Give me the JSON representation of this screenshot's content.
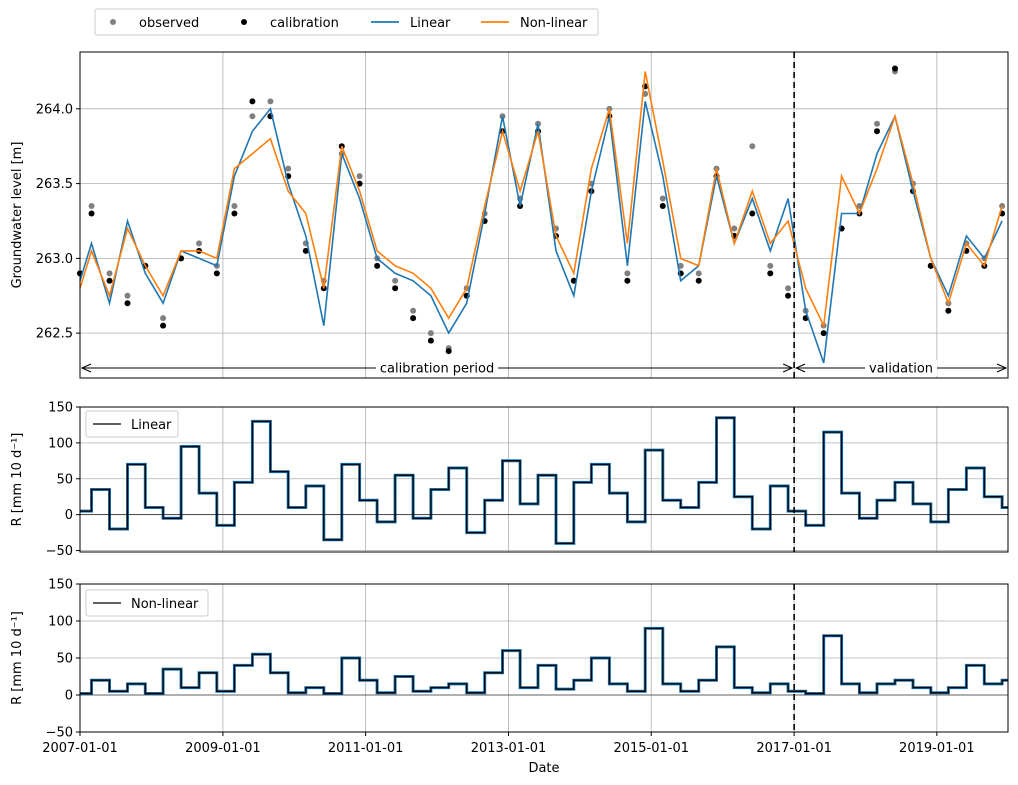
{
  "colors": {
    "observed": "#808080",
    "calibration": "#000000",
    "linear": "#1f77b4",
    "nonlinear": "#ff7f0e",
    "grid": "#b0b0b0"
  },
  "legend_top": [
    {
      "label": "observed",
      "kind": "marker",
      "color": "#808080"
    },
    {
      "label": "calibration",
      "kind": "marker",
      "color": "#000000"
    },
    {
      "label": "Linear",
      "kind": "line",
      "color": "#1f77b4"
    },
    {
      "label": "Non-linear",
      "kind": "line",
      "color": "#ff7f0e"
    }
  ],
  "chart_data": [
    {
      "type": "line",
      "id": "head",
      "ylabel": "Groundwater level [m]",
      "xlim": [
        "2007-01-01",
        "2019-12-31"
      ],
      "ylim": [
        262.2,
        264.38
      ],
      "yticks": [
        262.5,
        263.0,
        263.5,
        264.0
      ],
      "ytick_labels": [
        "262.5",
        "263.0",
        "263.5",
        "264.0"
      ],
      "grid": true,
      "split_date": "2017-01-01",
      "annotations": [
        {
          "text": "calibration period",
          "from": "2007-01-01",
          "to": "2017-01-01"
        },
        {
          "text": "validation",
          "from": "2017-01-01",
          "to": "2019-12-31"
        }
      ],
      "series": [
        {
          "name": "observed",
          "style": "points",
          "x": [
            "2007-01-01",
            "2007-03-01",
            "2007-06-01",
            "2007-09-01",
            "2007-12-01",
            "2008-03-01",
            "2008-06-01",
            "2008-09-01",
            "2008-12-01",
            "2009-03-01",
            "2009-06-01",
            "2009-09-01",
            "2009-12-01",
            "2010-03-01",
            "2010-06-01",
            "2010-09-01",
            "2010-12-01",
            "2011-03-01",
            "2011-06-01",
            "2011-09-01",
            "2011-12-01",
            "2012-03-01",
            "2012-06-01",
            "2012-09-01",
            "2012-12-01",
            "2013-03-01",
            "2013-06-01",
            "2013-09-01",
            "2013-12-01",
            "2014-03-01",
            "2014-06-01",
            "2014-09-01",
            "2014-12-01",
            "2015-03-01",
            "2015-06-01",
            "2015-09-01",
            "2015-12-01",
            "2016-03-01",
            "2016-06-01",
            "2016-09-01",
            "2016-12-01",
            "2017-03-01",
            "2017-06-01",
            "2017-09-01",
            "2017-12-01",
            "2018-03-01",
            "2018-06-01",
            "2018-09-01",
            "2018-12-01",
            "2019-03-01",
            "2019-06-01",
            "2019-09-01",
            "2019-12-01"
          ],
          "y": [
            262.9,
            263.35,
            262.9,
            262.75,
            262.95,
            262.6,
            263.0,
            263.1,
            262.95,
            263.35,
            263.95,
            264.05,
            263.6,
            263.1,
            262.85,
            263.7,
            263.55,
            263.0,
            262.85,
            262.65,
            262.5,
            262.4,
            262.8,
            263.3,
            263.95,
            263.4,
            263.9,
            263.2,
            262.85,
            263.5,
            264.0,
            262.9,
            264.1,
            263.4,
            262.95,
            262.9,
            263.6,
            263.2,
            263.75,
            262.95,
            262.8,
            262.65,
            262.55,
            263.2,
            263.35,
            263.9,
            264.25,
            263.5,
            262.95,
            262.7,
            263.1,
            263.0,
            263.35
          ]
        },
        {
          "name": "calibration",
          "style": "points",
          "x": [
            "2007-01-01",
            "2007-03-01",
            "2007-06-01",
            "2007-09-01",
            "2007-12-01",
            "2008-03-01",
            "2008-06-01",
            "2008-09-01",
            "2008-12-01",
            "2009-03-01",
            "2009-06-01",
            "2009-09-01",
            "2009-12-01",
            "2010-03-01",
            "2010-06-01",
            "2010-09-01",
            "2010-12-01",
            "2011-03-01",
            "2011-06-01",
            "2011-09-01",
            "2011-12-01",
            "2012-03-01",
            "2012-06-01",
            "2012-09-01",
            "2012-12-01",
            "2013-03-01",
            "2013-06-01",
            "2013-09-01",
            "2013-12-01",
            "2014-03-01",
            "2014-06-01",
            "2014-09-01",
            "2014-12-01",
            "2015-03-01",
            "2015-06-01",
            "2015-09-01",
            "2015-12-01",
            "2016-03-01",
            "2016-06-01",
            "2016-09-01",
            "2016-12-01",
            "2017-03-01",
            "2017-06-01",
            "2017-09-01",
            "2017-12-01",
            "2018-03-01",
            "2018-06-01",
            "2018-09-01",
            "2018-12-01",
            "2019-03-01",
            "2019-06-01",
            "2019-09-01",
            "2019-12-01"
          ],
          "y": [
            262.9,
            263.3,
            262.85,
            262.7,
            262.95,
            262.55,
            263.0,
            263.05,
            262.9,
            263.3,
            264.05,
            263.95,
            263.55,
            263.05,
            262.8,
            263.75,
            263.5,
            262.95,
            262.8,
            262.6,
            262.45,
            262.38,
            262.75,
            263.25,
            263.85,
            263.35,
            263.85,
            263.15,
            262.85,
            263.45,
            263.95,
            262.85,
            264.15,
            263.35,
            262.9,
            262.85,
            263.55,
            263.15,
            263.3,
            262.9,
            262.75,
            262.6,
            262.5,
            263.2,
            263.3,
            263.85,
            264.27,
            263.45,
            262.95,
            262.65,
            263.05,
            262.95,
            263.3
          ]
        },
        {
          "name": "Linear",
          "style": "line",
          "x": [
            "2007-01-01",
            "2007-03-01",
            "2007-06-01",
            "2007-09-01",
            "2007-12-01",
            "2008-03-01",
            "2008-06-01",
            "2008-09-01",
            "2008-12-01",
            "2009-03-01",
            "2009-06-01",
            "2009-09-01",
            "2009-12-01",
            "2010-03-01",
            "2010-06-01",
            "2010-09-01",
            "2010-12-01",
            "2011-03-01",
            "2011-06-01",
            "2011-09-01",
            "2011-12-01",
            "2012-03-01",
            "2012-06-01",
            "2012-09-01",
            "2012-12-01",
            "2013-03-01",
            "2013-06-01",
            "2013-09-01",
            "2013-12-01",
            "2014-03-01",
            "2014-06-01",
            "2014-09-01",
            "2014-12-01",
            "2015-03-01",
            "2015-06-01",
            "2015-09-01",
            "2015-12-01",
            "2016-03-01",
            "2016-06-01",
            "2016-09-01",
            "2016-12-01",
            "2017-03-01",
            "2017-06-01",
            "2017-09-01",
            "2017-12-01",
            "2018-03-01",
            "2018-06-01",
            "2018-09-01",
            "2018-12-01",
            "2019-03-01",
            "2019-06-01",
            "2019-09-01",
            "2019-12-01"
          ],
          "y": [
            262.85,
            263.1,
            262.7,
            263.25,
            262.9,
            262.7,
            263.05,
            263.0,
            262.95,
            263.55,
            263.85,
            264.0,
            263.5,
            263.15,
            262.55,
            263.7,
            263.4,
            263.0,
            262.9,
            262.85,
            262.75,
            262.5,
            262.7,
            263.3,
            263.95,
            263.35,
            263.9,
            263.05,
            262.75,
            263.45,
            263.95,
            262.95,
            264.05,
            263.55,
            262.85,
            262.95,
            263.55,
            263.1,
            263.4,
            263.05,
            263.4,
            262.65,
            262.3,
            263.3,
            263.3,
            263.7,
            263.95,
            263.45,
            263.0,
            262.75,
            263.15,
            263.0,
            263.25
          ]
        },
        {
          "name": "Non-linear",
          "style": "line",
          "x": [
            "2007-01-01",
            "2007-03-01",
            "2007-06-01",
            "2007-09-01",
            "2007-12-01",
            "2008-03-01",
            "2008-06-01",
            "2008-09-01",
            "2008-12-01",
            "2009-03-01",
            "2009-06-01",
            "2009-09-01",
            "2009-12-01",
            "2010-03-01",
            "2010-06-01",
            "2010-09-01",
            "2010-12-01",
            "2011-03-01",
            "2011-06-01",
            "2011-09-01",
            "2011-12-01",
            "2012-03-01",
            "2012-06-01",
            "2012-09-01",
            "2012-12-01",
            "2013-03-01",
            "2013-06-01",
            "2013-09-01",
            "2013-12-01",
            "2014-03-01",
            "2014-06-01",
            "2014-09-01",
            "2014-12-01",
            "2015-03-01",
            "2015-06-01",
            "2015-09-01",
            "2015-12-01",
            "2016-03-01",
            "2016-06-01",
            "2016-09-01",
            "2016-12-01",
            "2017-03-01",
            "2017-06-01",
            "2017-09-01",
            "2017-12-01",
            "2018-03-01",
            "2018-06-01",
            "2018-09-01",
            "2018-12-01",
            "2019-03-01",
            "2019-06-01",
            "2019-09-01",
            "2019-12-01"
          ],
          "y": [
            262.8,
            263.05,
            262.75,
            263.2,
            262.95,
            262.75,
            263.05,
            263.05,
            263.0,
            263.6,
            263.7,
            263.8,
            263.45,
            263.3,
            262.8,
            263.75,
            263.45,
            263.05,
            262.95,
            262.9,
            262.8,
            262.6,
            262.8,
            263.35,
            263.85,
            263.45,
            263.85,
            263.15,
            262.9,
            263.6,
            264.0,
            263.1,
            264.25,
            263.65,
            263.0,
            262.95,
            263.6,
            263.1,
            263.45,
            263.1,
            263.25,
            262.8,
            262.55,
            263.55,
            263.3,
            263.6,
            263.95,
            263.5,
            263.0,
            262.7,
            263.1,
            262.95,
            263.35
          ]
        }
      ]
    },
    {
      "type": "line",
      "id": "recharge_linear",
      "ylabel": "R [mm 10 d⁻¹]",
      "xlim": [
        "2007-01-01",
        "2019-12-31"
      ],
      "ylim": [
        -52,
        150
      ],
      "yticks": [
        -50,
        0,
        50,
        100,
        150
      ],
      "ytick_labels": [
        "−50",
        "0",
        "50",
        "100",
        "150"
      ],
      "grid": true,
      "legend": "Linear",
      "split_date": "2017-01-01",
      "series": [
        {
          "name": "Linear",
          "style": "steps",
          "x": [
            "2007-01-01",
            "2007-03-01",
            "2007-06-01",
            "2007-09-01",
            "2007-12-01",
            "2008-03-01",
            "2008-06-01",
            "2008-09-01",
            "2008-12-01",
            "2009-03-01",
            "2009-06-01",
            "2009-09-01",
            "2009-12-01",
            "2010-03-01",
            "2010-06-01",
            "2010-09-01",
            "2010-12-01",
            "2011-03-01",
            "2011-06-01",
            "2011-09-01",
            "2011-12-01",
            "2012-03-01",
            "2012-06-01",
            "2012-09-01",
            "2012-12-01",
            "2013-03-01",
            "2013-06-01",
            "2013-09-01",
            "2013-12-01",
            "2014-03-01",
            "2014-06-01",
            "2014-09-01",
            "2014-12-01",
            "2015-03-01",
            "2015-06-01",
            "2015-09-01",
            "2015-12-01",
            "2016-03-01",
            "2016-06-01",
            "2016-09-01",
            "2016-12-01",
            "2017-03-01",
            "2017-06-01",
            "2017-09-01",
            "2017-12-01",
            "2018-03-01",
            "2018-06-01",
            "2018-09-01",
            "2018-12-01",
            "2019-03-01",
            "2019-06-01",
            "2019-09-01",
            "2019-12-01"
          ],
          "y": [
            5,
            35,
            -20,
            70,
            10,
            -5,
            95,
            30,
            -15,
            45,
            130,
            60,
            10,
            40,
            -35,
            70,
            20,
            -10,
            55,
            -5,
            35,
            65,
            -25,
            20,
            75,
            15,
            55,
            -40,
            45,
            70,
            30,
            -10,
            90,
            20,
            10,
            45,
            135,
            25,
            -20,
            40,
            5,
            -15,
            115,
            30,
            -5,
            20,
            45,
            15,
            -10,
            35,
            65,
            25,
            10
          ]
        }
      ]
    },
    {
      "type": "line",
      "id": "recharge_nonlinear",
      "xlabel": "Date",
      "ylabel": "R [mm 10 d⁻¹]",
      "xlim": [
        "2007-01-01",
        "2019-12-31"
      ],
      "ylim": [
        -50,
        150
      ],
      "yticks": [
        -50,
        0,
        50,
        100,
        150
      ],
      "ytick_labels": [
        "−50",
        "0",
        "50",
        "100",
        "150"
      ],
      "xticks": [
        "2007-01-01",
        "2009-01-01",
        "2011-01-01",
        "2013-01-01",
        "2015-01-01",
        "2017-01-01",
        "2019-01-01"
      ],
      "grid": true,
      "legend": "Non-linear",
      "split_date": "2017-01-01",
      "series": [
        {
          "name": "Non-linear",
          "style": "steps",
          "x": [
            "2007-01-01",
            "2007-03-01",
            "2007-06-01",
            "2007-09-01",
            "2007-12-01",
            "2008-03-01",
            "2008-06-01",
            "2008-09-01",
            "2008-12-01",
            "2009-03-01",
            "2009-06-01",
            "2009-09-01",
            "2009-12-01",
            "2010-03-01",
            "2010-06-01",
            "2010-09-01",
            "2010-12-01",
            "2011-03-01",
            "2011-06-01",
            "2011-09-01",
            "2011-12-01",
            "2012-03-01",
            "2012-06-01",
            "2012-09-01",
            "2012-12-01",
            "2013-03-01",
            "2013-06-01",
            "2013-09-01",
            "2013-12-01",
            "2014-03-01",
            "2014-06-01",
            "2014-09-01",
            "2014-12-01",
            "2015-03-01",
            "2015-06-01",
            "2015-09-01",
            "2015-12-01",
            "2016-03-01",
            "2016-06-01",
            "2016-09-01",
            "2016-12-01",
            "2017-03-01",
            "2017-06-01",
            "2017-09-01",
            "2017-12-01",
            "2018-03-01",
            "2018-06-01",
            "2018-09-01",
            "2018-12-01",
            "2019-03-01",
            "2019-06-01",
            "2019-09-01",
            "2019-12-01"
          ],
          "y": [
            2,
            20,
            5,
            15,
            2,
            35,
            10,
            30,
            5,
            40,
            55,
            30,
            3,
            10,
            2,
            50,
            20,
            3,
            25,
            5,
            10,
            15,
            3,
            30,
            60,
            10,
            40,
            8,
            20,
            50,
            15,
            5,
            90,
            15,
            5,
            20,
            65,
            10,
            3,
            15,
            5,
            2,
            80,
            15,
            3,
            15,
            20,
            10,
            3,
            10,
            40,
            15,
            20
          ]
        }
      ]
    }
  ]
}
